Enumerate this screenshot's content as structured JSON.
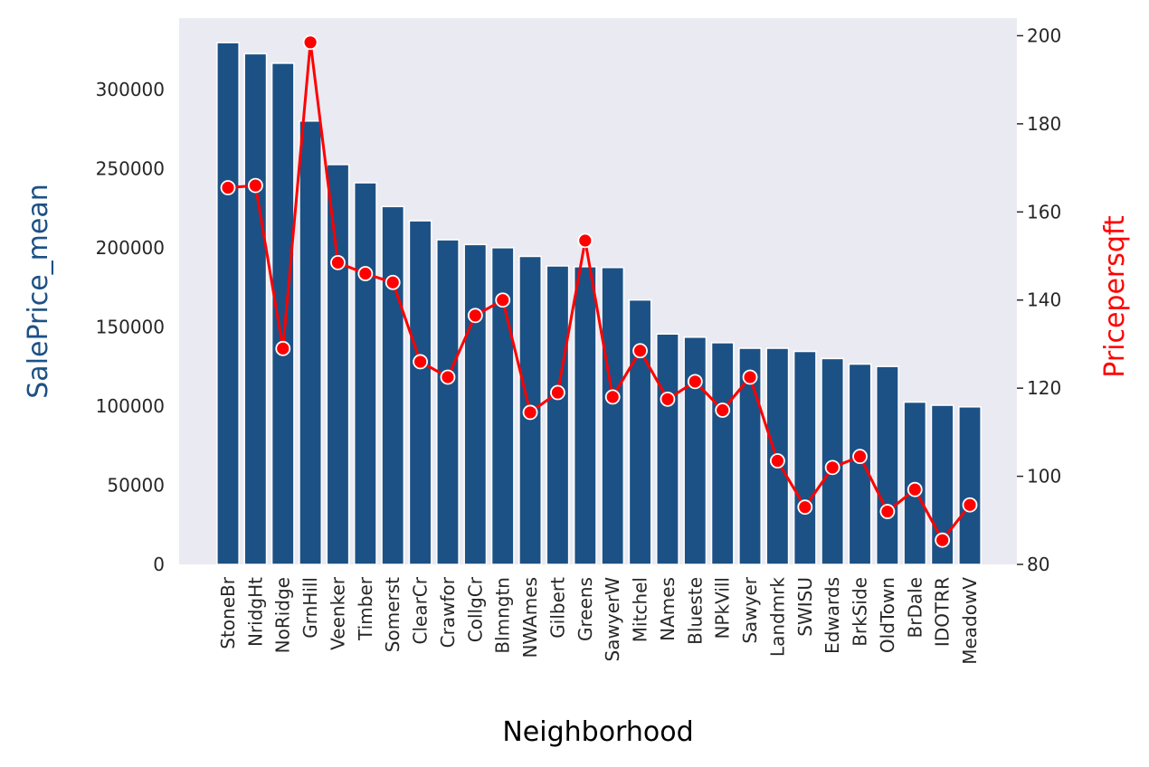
{
  "chart_data": {
    "type": "bar",
    "xlabel": "Neighborhood",
    "ylabel": "SalePrice_mean",
    "y2label": "Pricepersqft",
    "categories": [
      "StoneBr",
      "NridgHt",
      "NoRidge",
      "GrnHill",
      "Veenker",
      "Timber",
      "Somerst",
      "ClearCr",
      "Crawfor",
      "CollgCr",
      "Blmngtn",
      "NWAmes",
      "Gilbert",
      "Greens",
      "SawyerW",
      "Mitchel",
      "NAmes",
      "Blueste",
      "NPkVill",
      "Sawyer",
      "Landmrk",
      "SWISU",
      "Edwards",
      "BrkSide",
      "OldTown",
      "BrDale",
      "IDOTRR",
      "MeadowV"
    ],
    "series": [
      {
        "axis": "left",
        "chart_type": "bar",
        "color": "#1c5185",
        "values": [
          329500,
          322500,
          316500,
          280000,
          252500,
          241000,
          226000,
          217000,
          205000,
          202000,
          200000,
          194500,
          188500,
          188000,
          187500,
          167000,
          145500,
          143500,
          140000,
          136500,
          136500,
          134500,
          130000,
          126500,
          125000,
          102500,
          100500,
          99500
        ]
      },
      {
        "axis": "right",
        "chart_type": "line",
        "color": "#ff0000",
        "marker": "circle",
        "values": [
          165.5,
          166.0,
          129.0,
          198.5,
          148.5,
          146.0,
          144.0,
          126.0,
          122.5,
          136.5,
          140.0,
          114.5,
          119.0,
          153.5,
          118.0,
          128.5,
          117.5,
          121.5,
          115.0,
          122.5,
          103.5,
          93.0,
          102.0,
          104.5,
          92.0,
          97.0,
          85.5,
          93.5
        ]
      }
    ],
    "ylim": [
      0,
      345000
    ],
    "yticks": [
      0,
      50000,
      100000,
      150000,
      200000,
      250000,
      300000
    ],
    "y2lim": [
      80,
      204
    ],
    "y2ticks": [
      80,
      100,
      120,
      140,
      160,
      180,
      200
    ],
    "grid": false,
    "plot_background": "#eaeaf2",
    "ylabel_color": "#1c5185",
    "y2label_color": "#ff0000"
  }
}
